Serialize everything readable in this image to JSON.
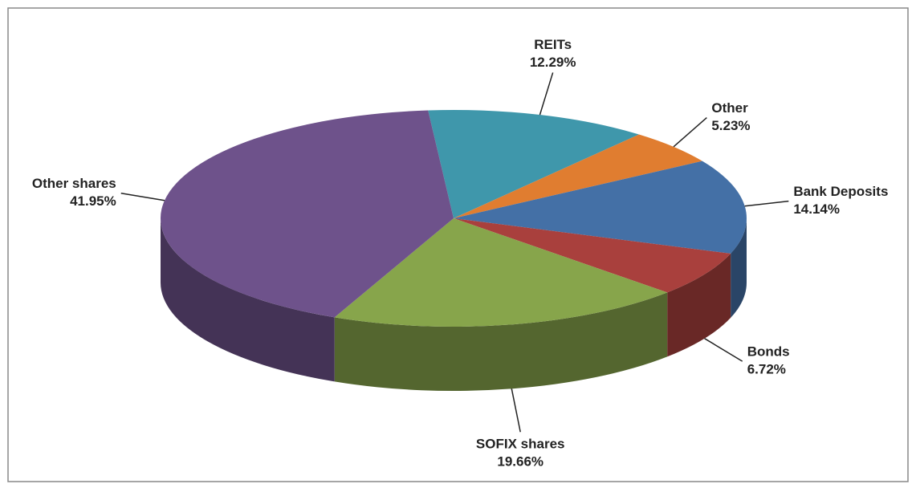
{
  "chart_data": {
    "type": "pie",
    "categories": [
      "REITs",
      "Other",
      "Bank Deposits",
      "Bonds",
      "SOFIX shares",
      "Other shares"
    ],
    "values": [
      12.29,
      5.23,
      14.14,
      6.72,
      19.66,
      41.95
    ],
    "value_labels": [
      "12.29%",
      "5.23%",
      "14.14%",
      "6.72%",
      "19.66%",
      "41.95%"
    ],
    "colors": [
      "#3f97ab",
      "#e07d30",
      "#4470a6",
      "#a9403d",
      "#87a54b",
      "#6e528b"
    ]
  }
}
